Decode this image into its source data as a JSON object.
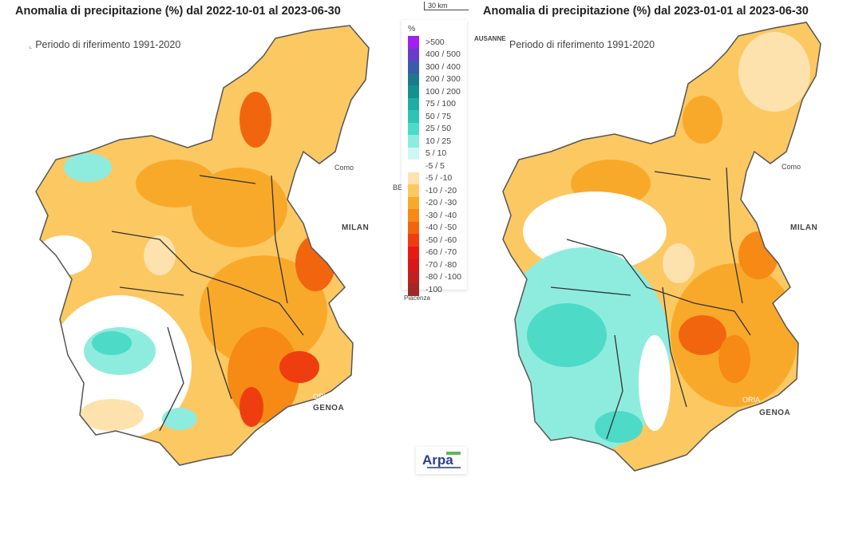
{
  "maps": [
    {
      "title": "Anomalia di precipitazione (%) dal 2022-10-01 al 2023-06-30",
      "reference": "Periodo di riferimento 1991-2020"
    },
    {
      "title": "Anomalia di precipitazione (%) dal 2023-01-01 al 2023-06-30",
      "reference": "Periodo di riferimento 1991-2020"
    }
  ],
  "scale_bar": "30 km",
  "legend": {
    "unit": "%",
    "items": [
      {
        "label": ">500",
        "color": "#a020f0"
      },
      {
        "label": "400 / 500",
        "color": "#6a3cc8"
      },
      {
        "label": "300 / 400",
        "color": "#3c5aa8"
      },
      {
        "label": "200 / 300",
        "color": "#1a7a8c"
      },
      {
        "label": "100 / 200",
        "color": "#14918e"
      },
      {
        "label": "75 / 100",
        "color": "#1fada3"
      },
      {
        "label": "50 / 75",
        "color": "#2ec4b4"
      },
      {
        "label": "25 / 50",
        "color": "#4ddbc8"
      },
      {
        "label": "10 / 25",
        "color": "#8eecdf"
      },
      {
        "label": "5 / 10",
        "color": "#cdf7f1"
      },
      {
        "label": "-5 / 5",
        "color": "#ffffff"
      },
      {
        "label": "-5 / -10",
        "color": "#fde2ad"
      },
      {
        "label": "-10 / -20",
        "color": "#fcc862"
      },
      {
        "label": "-20 / -30",
        "color": "#f9a92a"
      },
      {
        "label": "-30 / -40",
        "color": "#f68a14"
      },
      {
        "label": "-40 / -50",
        "color": "#f2650f"
      },
      {
        "label": "-50 / -60",
        "color": "#ee3e10"
      },
      {
        "label": "-60 / -70",
        "color": "#e81a10"
      },
      {
        "label": "-70 / -80",
        "color": "#d81818"
      },
      {
        "label": "-80 / -100",
        "color": "#c02020"
      },
      {
        "label": "-100",
        "color": "#a02828"
      }
    ]
  },
  "cities": {
    "como": "Como",
    "milan": "MILAN",
    "genoa": "GENOA",
    "piacenza": "Piacenza",
    "alessandria_partial": "ORIA",
    "lausanne_partial": "AUSANNE",
    "bergamo_partial": "BE"
  },
  "logo": "Arpa"
}
